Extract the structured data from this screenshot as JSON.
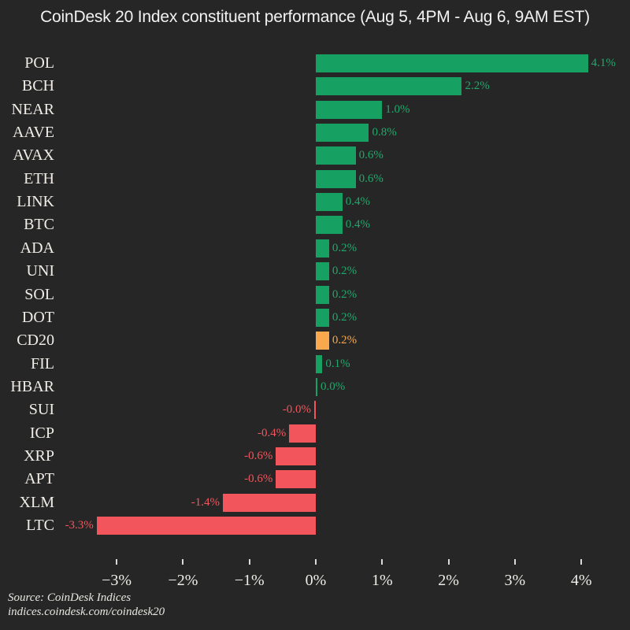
{
  "title": "CoinDesk 20 Index constituent performance (Aug 5, 4PM - Aug 6, 9AM EST)",
  "chart_data": {
    "type": "bar",
    "orientation": "horizontal",
    "title": "CoinDesk 20 Index constituent performance (Aug 5, 4PM - Aug 6, 9AM EST)",
    "categories": [
      "POL",
      "BCH",
      "NEAR",
      "AAVE",
      "AVAX",
      "ETH",
      "LINK",
      "BTC",
      "ADA",
      "UNI",
      "SOL",
      "DOT",
      "CD20",
      "FIL",
      "HBAR",
      "SUI",
      "ICP",
      "XRP",
      "APT",
      "XLM",
      "LTC"
    ],
    "values": [
      4.1,
      2.2,
      1.0,
      0.8,
      0.6,
      0.6,
      0.4,
      0.4,
      0.2,
      0.2,
      0.2,
      0.2,
      0.2,
      0.1,
      0.0,
      -0.0,
      -0.4,
      -0.6,
      -0.6,
      -1.4,
      -3.3
    ],
    "value_labels": [
      "4.1%",
      "2.2%",
      "1.0%",
      "0.8%",
      "0.6%",
      "0.6%",
      "0.4%",
      "0.4%",
      "0.2%",
      "0.2%",
      "0.2%",
      "0.2%",
      "0.2%",
      "0.1%",
      "0.0%",
      "-0.0%",
      "-0.4%",
      "-0.6%",
      "-0.6%",
      "-1.4%",
      "-3.3%"
    ],
    "highlight_category": "CD20",
    "x_ticks": [
      "−3%",
      "−2%",
      "−1%",
      "0%",
      "1%",
      "2%",
      "3%",
      "4%"
    ],
    "x_tick_values": [
      -3,
      -2,
      -1,
      0,
      1,
      2,
      3,
      4
    ],
    "xlim": [
      -3.95,
      4.75
    ],
    "xlabel": "",
    "ylabel": "",
    "grid": false,
    "legend": false
  },
  "source": {
    "line1": "Source: CoinDesk Indices",
    "line2": "indices.coindesk.com/coindesk20"
  },
  "colors": {
    "background": "#262626",
    "positive_bar": "#16A163",
    "negative_bar": "#F2565C",
    "highlight_bar": "#F9A84D",
    "positive_text": "#1FA96B",
    "negative_text": "#F2565C",
    "highlight_text": "#F9A84D",
    "title_text": "#F2F2F2",
    "category_text": "#F0EDE7",
    "tick_text": "#EFEDE8",
    "tick_mark": "#D9D9D9",
    "source_text": "#E8E6E1"
  }
}
